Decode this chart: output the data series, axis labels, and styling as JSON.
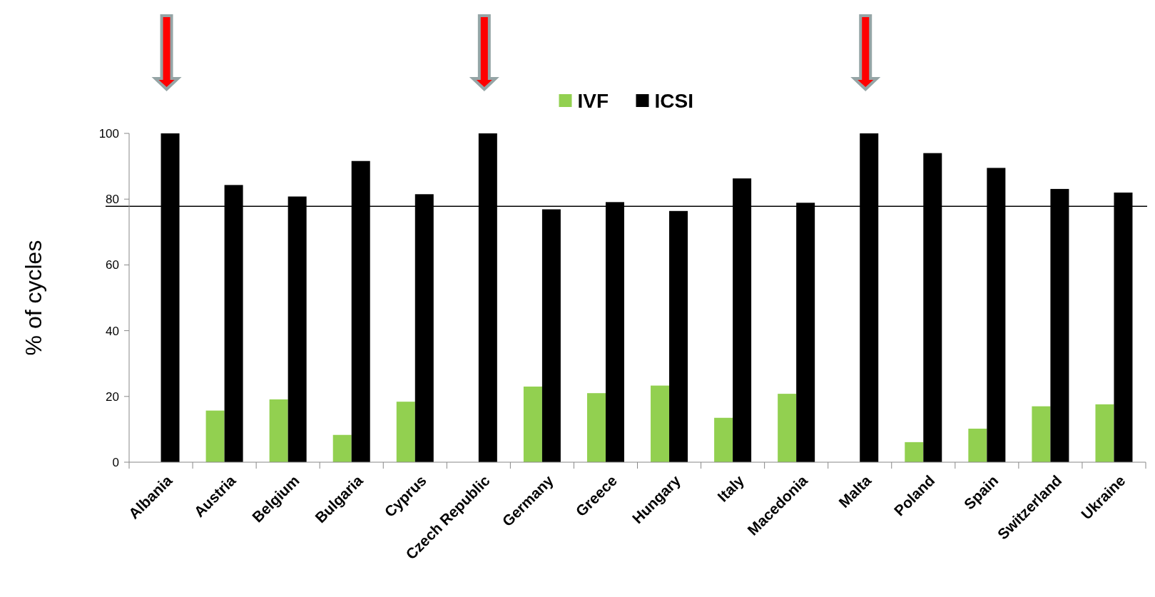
{
  "chart_data": {
    "type": "bar",
    "ylabel": "% of cycles",
    "categories": [
      "Albania",
      "Austria",
      "Belgium",
      "Bulgaria",
      "Cyprus",
      "Czech Republic",
      "Germany",
      "Greece",
      "Hungary",
      "Italy",
      "Macedonia",
      "Malta",
      "Poland",
      "Spain",
      "Switzerland",
      "Ukraine"
    ],
    "series": [
      {
        "name": "IVF",
        "color": "#92d050",
        "values": [
          null,
          15.7,
          19.1,
          8.3,
          18.4,
          null,
          23.0,
          21.0,
          23.3,
          13.5,
          20.8,
          null,
          6.1,
          10.2,
          17.0,
          17.6
        ]
      },
      {
        "name": "ICSI",
        "color": "#000000",
        "values": [
          100,
          84.3,
          80.8,
          91.6,
          81.5,
          100,
          76.9,
          79.1,
          76.4,
          86.3,
          78.9,
          100,
          94.0,
          89.5,
          83.1,
          82.0
        ]
      }
    ],
    "ylim": [
      0,
      100
    ],
    "yticks": [
      0,
      20,
      40,
      60,
      80,
      100
    ],
    "grid": false,
    "legend": "top",
    "ref_lines": [
      {
        "axis": "y",
        "value": 77.8,
        "color": "#000000"
      }
    ]
  }
}
